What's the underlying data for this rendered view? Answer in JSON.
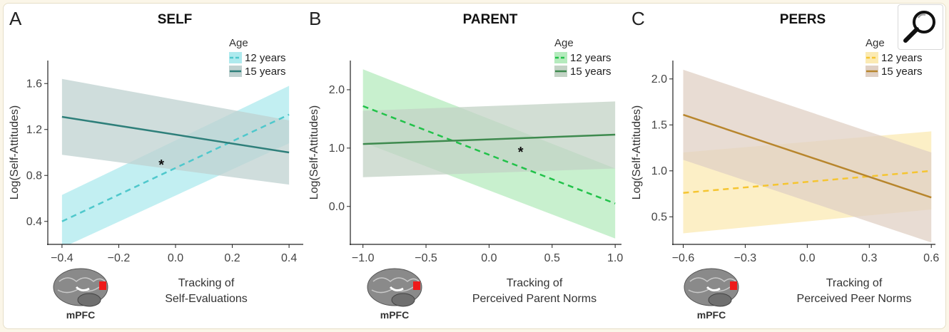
{
  "magnifier_icon": "magnifier-icon",
  "chart_data": [
    {
      "type": "line",
      "panel": "A",
      "title": "SELF",
      "ylabel": "Log(Self-Attitudes)",
      "xlabel": [
        "Tracking of",
        "Self-Evaluations"
      ],
      "region_label": "mPFC",
      "xlim": [
        -0.45,
        0.45
      ],
      "ylim": [
        0.2,
        1.8
      ],
      "xticks": [
        -0.4,
        -0.2,
        0.0,
        0.2,
        0.4
      ],
      "yticks": [
        0.4,
        0.8,
        1.2,
        1.6
      ],
      "xtick_labels": [
        "−0.4",
        "−0.2",
        "0.0",
        "0.2",
        "0.4"
      ],
      "ytick_labels": [
        "0.4",
        "0.8",
        "1.2",
        "1.6"
      ],
      "legend_title": "Age",
      "annotation": "*",
      "annotation_pos": [
        -0.05,
        0.85
      ],
      "series": [
        {
          "name": "12 years",
          "style": "dashed",
          "color": "#4fc8cc",
          "band_color": "#aeeaee",
          "x": [
            -0.4,
            0.4
          ],
          "y": [
            0.4,
            1.33
          ],
          "lower": [
            0.17,
            1.08
          ],
          "upper": [
            0.63,
            1.58
          ]
        },
        {
          "name": "15 years",
          "style": "solid",
          "color": "#2e7f7a",
          "band_color": "#bfd1d0",
          "x": [
            -0.4,
            0.4
          ],
          "y": [
            1.31,
            1.0
          ],
          "lower": [
            0.98,
            0.72
          ],
          "upper": [
            1.64,
            1.28
          ]
        }
      ]
    },
    {
      "type": "line",
      "panel": "B",
      "title": "PARENT",
      "ylabel": "Log(Self-Attitudes)",
      "xlabel": [
        "Tracking of",
        "Perceived Parent Norms"
      ],
      "region_label": "mPFC",
      "xlim": [
        -1.1,
        1.05
      ],
      "ylim": [
        -0.65,
        2.5
      ],
      "xticks": [
        -1.0,
        -0.5,
        0.0,
        0.5,
        1.0
      ],
      "yticks": [
        0.0,
        1.0,
        2.0
      ],
      "xtick_labels": [
        "−1.0",
        "−0.5",
        "0.0",
        "0.5",
        "1.0"
      ],
      "ytick_labels": [
        "0.0",
        "1.0",
        "2.0"
      ],
      "legend_title": "Age",
      "annotation": "*",
      "annotation_pos": [
        0.25,
        0.85
      ],
      "series": [
        {
          "name": "12 years",
          "style": "dashed",
          "color": "#22c24a",
          "band_color": "#b5ebbd",
          "x": [
            -1.0,
            1.0
          ],
          "y": [
            1.72,
            0.05
          ],
          "lower": [
            1.1,
            -0.55
          ],
          "upper": [
            2.35,
            0.65
          ]
        },
        {
          "name": "15 years",
          "style": "solid",
          "color": "#3e8a4e",
          "band_color": "#c3d3c5",
          "x": [
            -1.0,
            1.0
          ],
          "y": [
            1.07,
            1.23
          ],
          "lower": [
            0.5,
            0.65
          ],
          "upper": [
            1.64,
            1.8
          ]
        }
      ]
    },
    {
      "type": "line",
      "panel": "C",
      "title": "PEERS",
      "ylabel": "Log(Self-Attitudes)",
      "xlabel": [
        "Tracking of",
        "Perceived Peer Norms"
      ],
      "region_label": "mPFC",
      "xlim": [
        -0.65,
        0.62
      ],
      "ylim": [
        0.2,
        2.2
      ],
      "xticks": [
        -0.6,
        -0.3,
        0.0,
        0.3,
        0.6
      ],
      "yticks": [
        0.5,
        1.0,
        1.5,
        2.0
      ],
      "xtick_labels": [
        "−0.6",
        "−0.3",
        "0.0",
        "0.3",
        "0.6"
      ],
      "ytick_labels": [
        "0.5",
        "1.0",
        "1.5",
        "2.0"
      ],
      "legend_title": "Age",
      "series": [
        {
          "name": "12 years",
          "style": "dashed",
          "color": "#f5c531",
          "band_color": "#fbeab3",
          "x": [
            -0.6,
            0.6
          ],
          "y": [
            0.76,
            1.0
          ],
          "lower": [
            0.32,
            0.58
          ],
          "upper": [
            1.2,
            1.43
          ]
        },
        {
          "name": "15 years",
          "style": "solid",
          "color": "#b8862d",
          "band_color": "#e0d0c4",
          "x": [
            -0.6,
            0.6
          ],
          "y": [
            1.61,
            0.71
          ],
          "lower": [
            1.12,
            0.22
          ],
          "upper": [
            2.1,
            1.2
          ]
        }
      ]
    }
  ]
}
